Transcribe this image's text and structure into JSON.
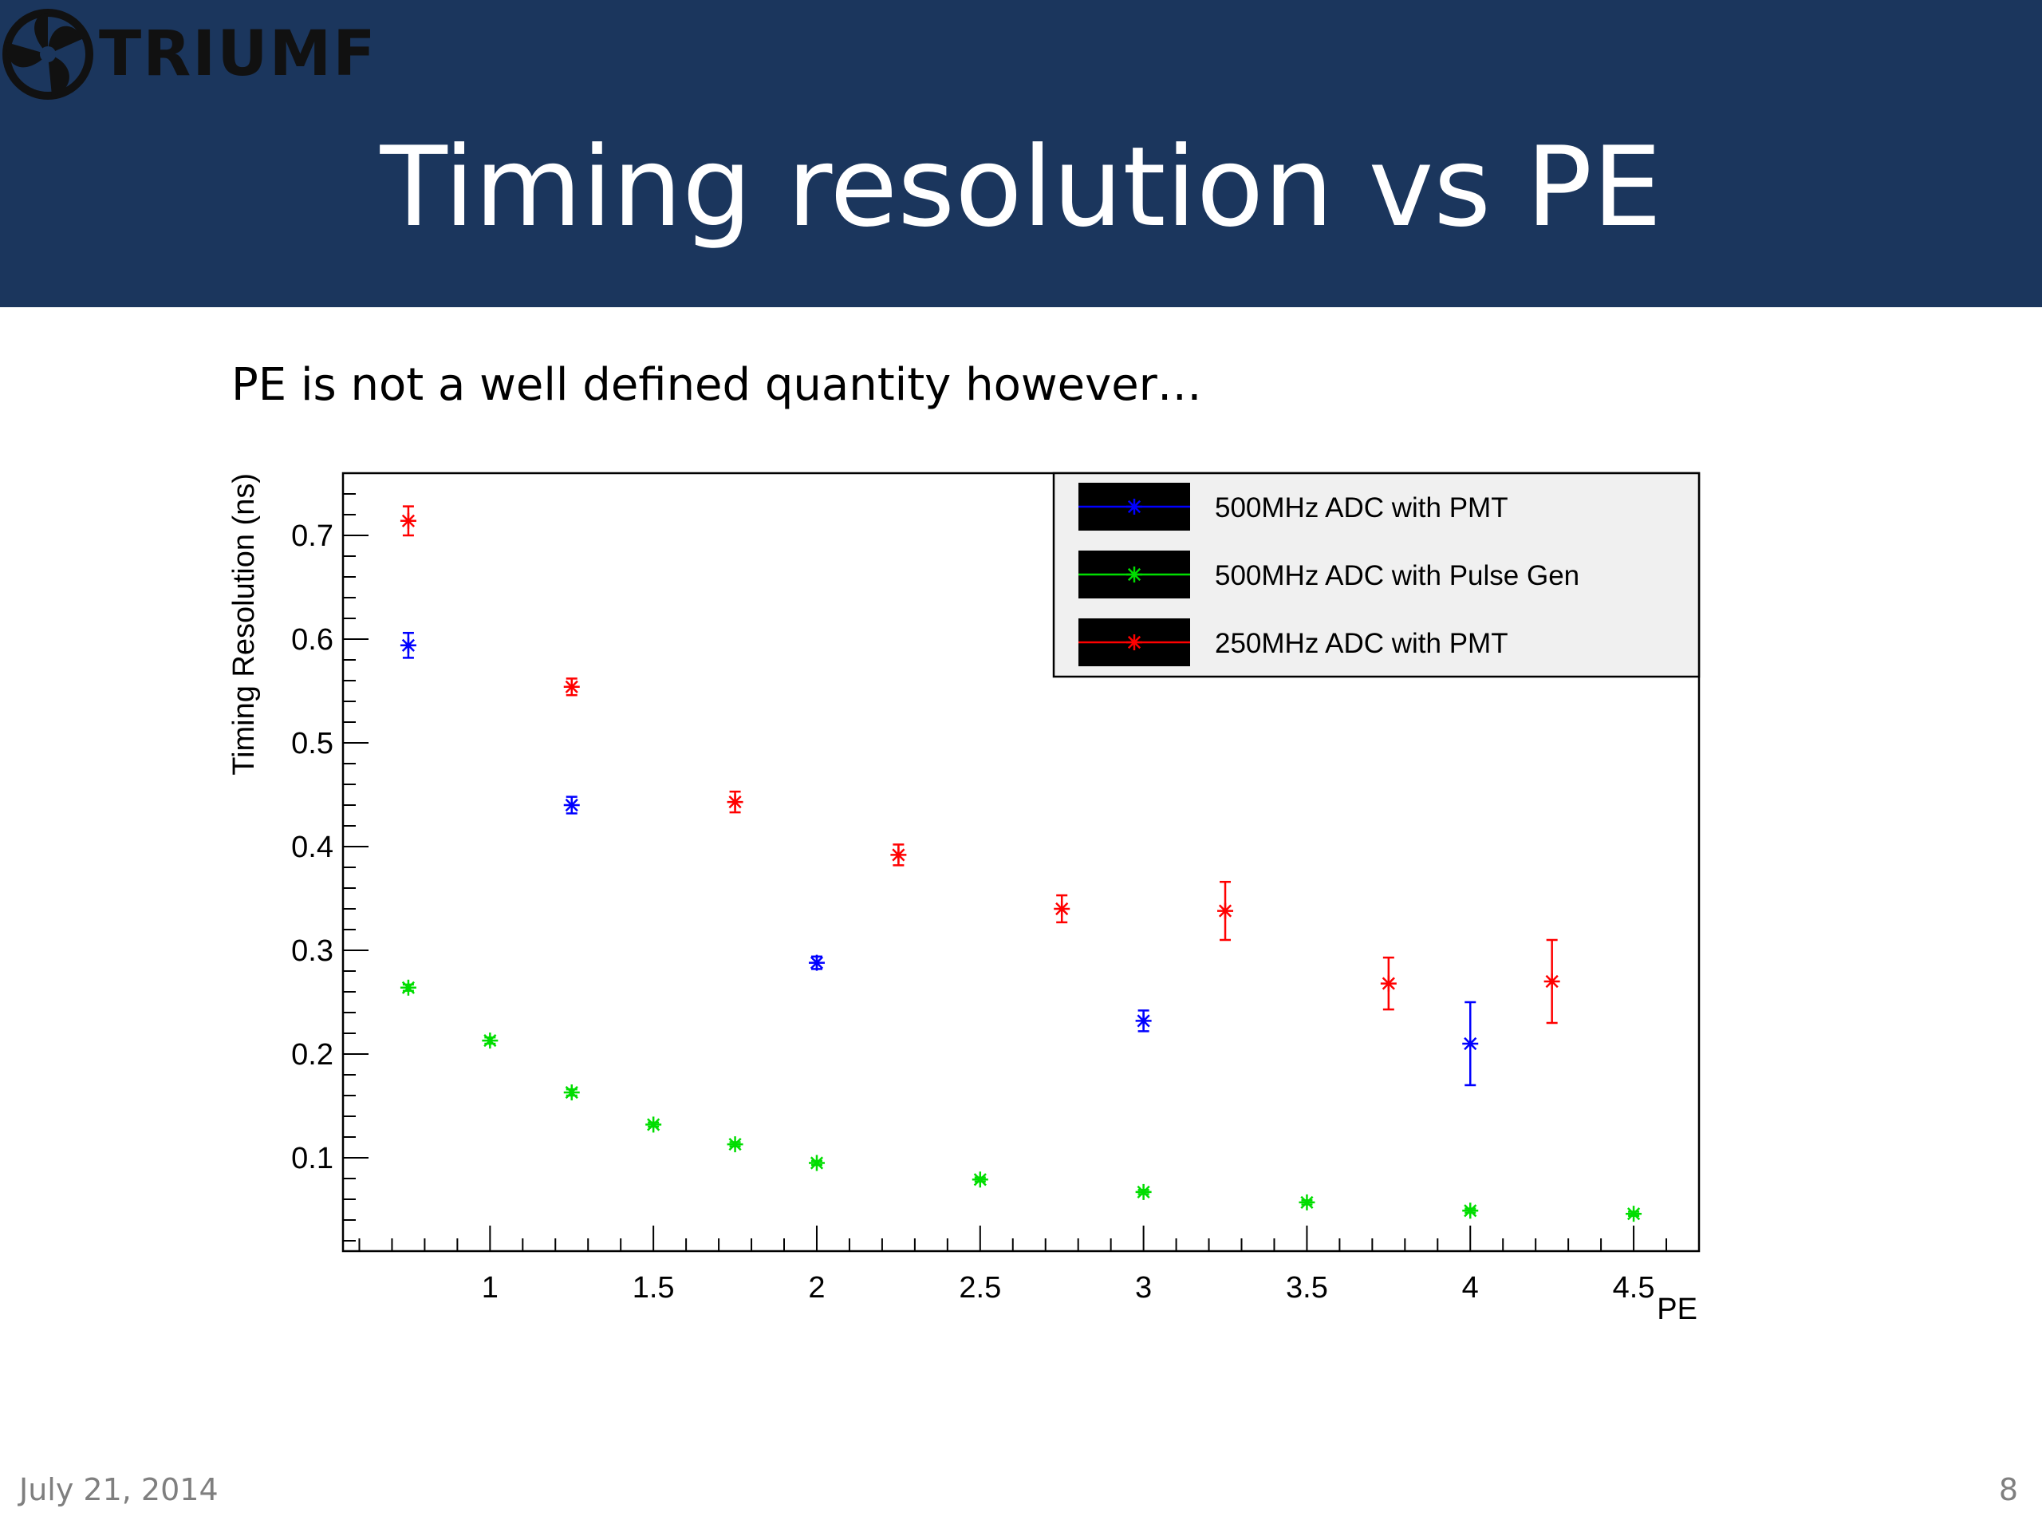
{
  "header": {
    "logo_text": "TRIUMF",
    "title": "Timing resolution vs PE"
  },
  "subtitle": "PE is not a well defined quantity however…",
  "footer": {
    "date": "July 21, 2014",
    "page": "8"
  },
  "colors": {
    "header_bg": "#1b365d",
    "title": "#ffffff"
  },
  "chart_data": {
    "type": "scatter",
    "title": "",
    "xlabel": "PE",
    "ylabel": "Timing Resolution (ns)",
    "xlim": [
      0.55,
      4.7
    ],
    "ylim": [
      0.01,
      0.76
    ],
    "x_ticks": [
      1,
      1.5,
      2,
      2.5,
      3,
      3.5,
      4,
      4.5
    ],
    "x_tick_labels": [
      "1",
      "1.5",
      "2",
      "2.5",
      "3",
      "3.5",
      "4",
      "4.5"
    ],
    "y_ticks": [
      0.1,
      0.2,
      0.3,
      0.4,
      0.5,
      0.6,
      0.7
    ],
    "y_tick_labels": [
      "0.1",
      "0.2",
      "0.3",
      "0.4",
      "0.5",
      "0.6",
      "0.7"
    ],
    "grid": false,
    "legend_position": "top-right",
    "series": [
      {
        "name": "500MHz ADC with PMT",
        "color": "#0000ff",
        "x": [
          0.75,
          1.25,
          2.0,
          3.0,
          4.0
        ],
        "y": [
          0.594,
          0.44,
          0.288,
          0.232,
          0.21
        ],
        "yerr": [
          0.012,
          0.008,
          0.006,
          0.01,
          0.04
        ]
      },
      {
        "name": "500MHz ADC with Pulse Gen",
        "color": "#00dd00",
        "x": [
          0.75,
          1.0,
          1.25,
          1.5,
          1.75,
          2.0,
          2.5,
          3.0,
          3.5,
          4.0,
          4.5
        ],
        "y": [
          0.264,
          0.213,
          0.163,
          0.132,
          0.113,
          0.095,
          0.079,
          0.067,
          0.057,
          0.049,
          0.046
        ],
        "yerr": [
          0.003,
          0.003,
          0.003,
          0.002,
          0.002,
          0.002,
          0.002,
          0.002,
          0.002,
          0.002,
          0.002
        ]
      },
      {
        "name": "250MHz ADC with PMT",
        "color": "#ff0000",
        "x": [
          0.75,
          1.25,
          1.75,
          2.25,
          2.75,
          3.25,
          3.75,
          4.25
        ],
        "y": [
          0.714,
          0.554,
          0.443,
          0.392,
          0.34,
          0.338,
          0.268,
          0.27
        ],
        "yerr": [
          0.014,
          0.008,
          0.01,
          0.01,
          0.013,
          0.028,
          0.025,
          0.04
        ]
      }
    ]
  }
}
